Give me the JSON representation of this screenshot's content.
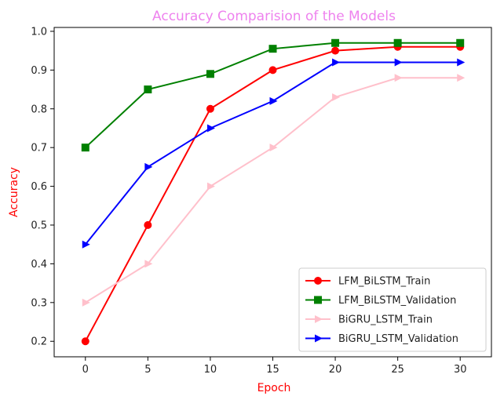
{
  "chart_data": {
    "type": "line",
    "title": "Accuracy Comparision of the Models",
    "xlabel": "Epoch",
    "ylabel": "Accuracy",
    "x": [
      0,
      5,
      10,
      15,
      20,
      25,
      30
    ],
    "xticks": [
      "0",
      "5",
      "10",
      "15",
      "20",
      "25",
      "30"
    ],
    "yticks": [
      "0.2",
      "0.3",
      "0.4",
      "0.5",
      "0.6",
      "0.7",
      "0.8",
      "0.9",
      "1.0"
    ],
    "xlim": [
      -2.5,
      32.5
    ],
    "ylim": [
      0.16,
      1.01
    ],
    "grid": false,
    "legend_position": "lower-right",
    "colors": {
      "title": "#ee82ee",
      "axis_title": "#ff0000"
    },
    "series": [
      {
        "name": "LFM_BiLSTM_Train",
        "color": "#ff0000",
        "marker": "circle",
        "values": [
          0.2,
          0.5,
          0.8,
          0.9,
          0.95,
          0.96,
          0.96
        ]
      },
      {
        "name": "LFM_BiLSTM_Validation",
        "color": "#008000",
        "marker": "square",
        "values": [
          0.7,
          0.85,
          0.89,
          0.955,
          0.97,
          0.97,
          0.97
        ]
      },
      {
        "name": "BiGRU_LSTM_Train",
        "color": "#ffc0cb",
        "marker": "triangle-right",
        "values": [
          0.3,
          0.4,
          0.6,
          0.7,
          0.83,
          0.88,
          0.88
        ]
      },
      {
        "name": "BiGRU_LSTM_Validation",
        "color": "#0000ff",
        "marker": "triangle-right",
        "values": [
          0.45,
          0.65,
          0.75,
          0.82,
          0.92,
          0.92,
          0.92
        ]
      }
    ]
  }
}
